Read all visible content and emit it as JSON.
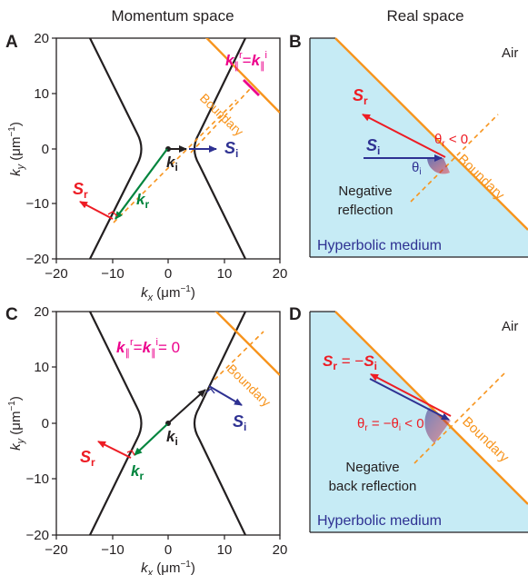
{
  "titles": {
    "momentum": "Momentum space",
    "real": "Real space"
  },
  "panel_letters": [
    "A",
    "B",
    "C",
    "D"
  ],
  "axes": {
    "x_ticks": [
      "−20",
      "−10",
      "0",
      "10",
      "20"
    ],
    "y_ticks": [
      "20",
      "10",
      "0",
      "−10",
      "−20"
    ],
    "xlabel_var": "k",
    "xlabel_sub": "x",
    "xlabel_unit": " (μm",
    "xlabel_exp": "−1",
    "xlabel_close": ")",
    "ylabel_var": "k",
    "ylabel_sub": "y",
    "ylabel_unit": " (μm",
    "ylabel_exp": "−1",
    "ylabel_close": ")",
    "xlim": [
      -20,
      20
    ],
    "ylim": [
      -20,
      20
    ]
  },
  "labels": {
    "boundary": "Boundary",
    "air": "Air",
    "hyperbolic_medium": "Hyperbolic medium",
    "S": "S",
    "k": "k",
    "sub_r": "r",
    "sub_i": "i",
    "parallel_sub": "∥",
    "eq_A_mid": "=",
    "eq_C_tail": "= 0",
    "theta": "θ",
    "theta_B_cond": " < 0",
    "theta_D_eq": " = −θ",
    "theta_D_cond": " < 0",
    "eq_D": " = −",
    "negative_reflection": [
      "Negative",
      "reflection"
    ],
    "negative_back_reflection": [
      "Negative",
      "back reflection"
    ]
  },
  "colors": {
    "incident": "#2e3192",
    "reflected": "#ed1c24",
    "k_reflected": "#00843d",
    "boundary": "#f7941d",
    "equation": "#ec008c",
    "medium": "#c6ebf5",
    "curve": "#231f20"
  },
  "icons": {
    "arrow": "arrowhead",
    "right_angle": "right-angle-marker"
  }
}
